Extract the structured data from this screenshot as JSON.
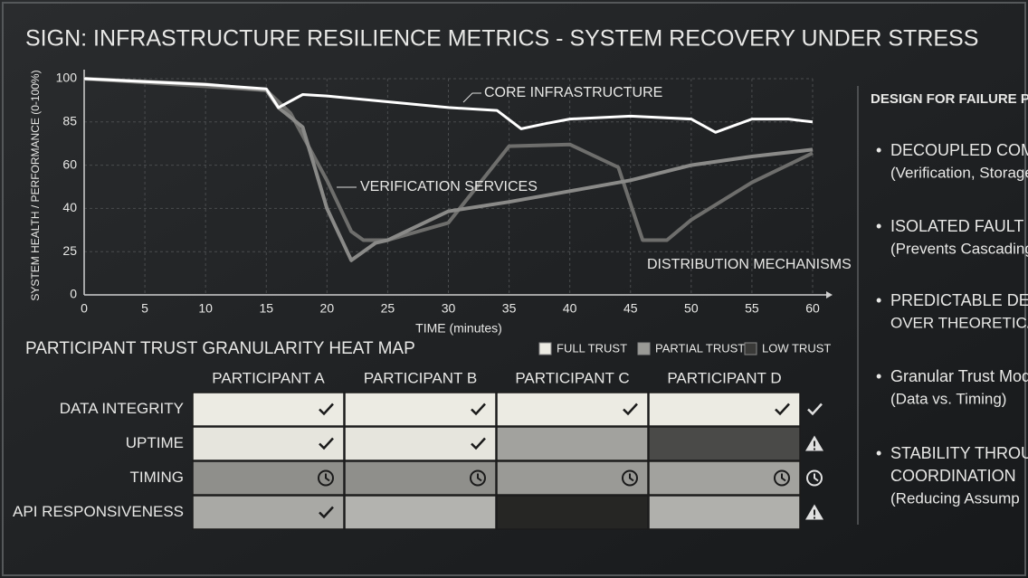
{
  "chart_data": {
    "type": "line",
    "title": "SIGN: INFRASTRUCTURE RESILIENCE METRICS - SYSTEM RECOVERY UNDER STRESS",
    "y_label": "SYSTEM HEALTH / PERFORMANCE (0-100%)",
    "x_label": "TIME (minutes)",
    "xlim": [
      0,
      60
    ],
    "xticks": [
      0,
      5,
      10,
      15,
      20,
      25,
      30,
      35,
      40,
      45,
      50,
      55,
      60
    ],
    "ylim": [
      0,
      100
    ],
    "yticks": [
      0,
      25,
      40,
      60,
      85,
      100
    ],
    "grid": true,
    "series": [
      {
        "name": "CORE INFRASTRUCTURE",
        "color": "#ffffff",
        "x": [
          0,
          5,
          10,
          15,
          16,
          18,
          20,
          25,
          30,
          34,
          36,
          38,
          40,
          45,
          50,
          52,
          55,
          58,
          60
        ],
        "values": [
          100,
          99,
          98,
          96.5,
          90,
          94.5,
          94,
          92,
          90,
          89,
          81,
          84,
          86,
          87,
          86,
          79,
          86,
          86,
          85
        ]
      },
      {
        "name": "VERIFICATION SERVICES",
        "color": "#8a8a88",
        "x": [
          0,
          10,
          15,
          16,
          18,
          20,
          22,
          24,
          25,
          30,
          35,
          40,
          45,
          50,
          55,
          60
        ],
        "values": [
          100,
          98,
          96,
          90,
          82,
          40,
          20,
          28,
          29,
          39,
          43,
          48,
          53,
          60,
          65,
          69
        ]
      },
      {
        "name": "DISTRIBUTION MECHANISMS",
        "color": "#6e6e6c",
        "x": [
          0,
          15,
          17,
          20,
          22,
          23,
          25,
          30,
          35,
          40,
          44,
          46,
          48,
          50,
          55,
          60
        ],
        "values": [
          100,
          96,
          88,
          53,
          32,
          29,
          29,
          35,
          71,
          72,
          59,
          29,
          29,
          36,
          52,
          67
        ]
      }
    ]
  },
  "heatmap": {
    "title": "PARTICIPANT TRUST GRANULARITY HEAT MAP",
    "legend": [
      {
        "name": "FULL TRUST",
        "color": "#ecebe3"
      },
      {
        "name": "PARTIAL TRUST",
        "color": "#9a9a96"
      },
      {
        "name": "LOW TRUST",
        "color": "#3a3a38"
      }
    ],
    "columns": [
      "PARTICIPANT A",
      "PARTICIPANT B",
      "PARTICIPANT C",
      "PARTICIPANT D"
    ],
    "rows": [
      {
        "label": "DATA INTEGRITY",
        "status": "check",
        "cells": [
          {
            "color": "#ecebe3",
            "icon": "check"
          },
          {
            "color": "#ecebe3",
            "icon": "check"
          },
          {
            "color": "#ecebe3",
            "icon": "check"
          },
          {
            "color": "#ecebe3",
            "icon": "check"
          }
        ]
      },
      {
        "label": "UPTIME",
        "status": "warning",
        "cells": [
          {
            "color": "#e6e5dd",
            "icon": "check"
          },
          {
            "color": "#e6e5dd",
            "icon": "check"
          },
          {
            "color": "#a2a29e"
          },
          {
            "color": "#4a4a48"
          }
        ]
      },
      {
        "label": "TIMING",
        "status": "clock",
        "cells": [
          {
            "color": "#8f8f8b",
            "icon": "clock"
          },
          {
            "color": "#8f8f8b",
            "icon": "clock"
          },
          {
            "color": "#9a9a96",
            "icon": "clock"
          },
          {
            "color": "#a2a29e",
            "icon": "clock"
          }
        ]
      },
      {
        "label": "API RESPONSIVENESS",
        "status": "warning",
        "cells": [
          {
            "color": "#a9a9a5",
            "icon": "check"
          },
          {
            "color": "#b3b3af"
          },
          {
            "color": "#262624"
          },
          {
            "color": "#b0b0ac"
          }
        ]
      }
    ]
  },
  "panel": {
    "title": "DESIGN FOR FAILURE PH",
    "items": [
      {
        "lines": [
          "DECOUPLED COMPO",
          "(Verification, Storage, I"
        ]
      },
      {
        "lines": [
          "ISOLATED FAULT D",
          "(Prevents Cascading"
        ]
      },
      {
        "lines": [
          "PREDICTABLE DELA",
          "OVER THEORETICA"
        ]
      },
      {
        "lines": [
          "Granular Trust Mod",
          "(Data vs. Timing)"
        ]
      },
      {
        "lines": [
          "STABILITY THROU",
          "COORDINATION",
          "(Reducing Assump"
        ]
      }
    ]
  }
}
